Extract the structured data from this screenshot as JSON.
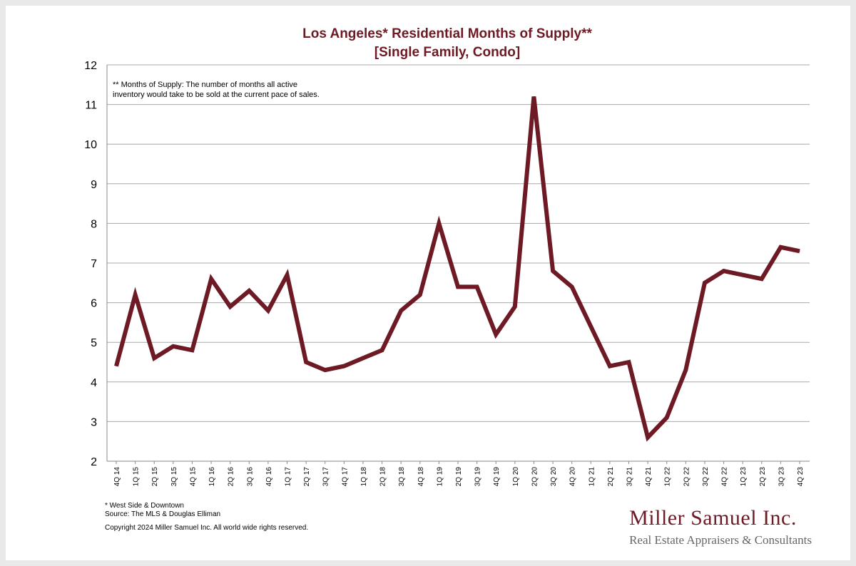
{
  "chart_data": {
    "type": "line",
    "title": "Los Angeles* Residential Months of Supply**",
    "subtitle": "[Single Family, Condo]",
    "xlabel": "",
    "ylabel": "",
    "ylim": [
      2,
      12
    ],
    "yticks": [
      2,
      3,
      4,
      5,
      6,
      7,
      8,
      9,
      10,
      11,
      12
    ],
    "grid": true,
    "line_color": "#6e1a24",
    "categories": [
      "4Q 14",
      "1Q 15",
      "2Q 15",
      "3Q 15",
      "4Q 15",
      "1Q 16",
      "2Q 16",
      "3Q 16",
      "4Q 16",
      "1Q 17",
      "2Q 17",
      "3Q 17",
      "4Q 17",
      "1Q 18",
      "2Q 18",
      "3Q 18",
      "4Q 18",
      "1Q 19",
      "2Q 19",
      "3Q 19",
      "4Q 19",
      "1Q 20",
      "2Q 20",
      "3Q 20",
      "4Q 20",
      "1Q 21",
      "2Q 21",
      "3Q 21",
      "4Q 21",
      "1Q 22",
      "2Q 22",
      "3Q 22",
      "4Q 22",
      "1Q 23",
      "2Q 23",
      "3Q 23",
      "4Q 23"
    ],
    "series": [
      {
        "name": "Months of Supply",
        "values": [
          4.4,
          6.2,
          4.6,
          4.9,
          4.8,
          6.6,
          5.9,
          6.3,
          5.8,
          6.7,
          4.5,
          4.3,
          4.4,
          4.6,
          4.8,
          5.8,
          6.2,
          8.0,
          6.4,
          6.4,
          5.2,
          5.9,
          11.2,
          6.8,
          6.4,
          5.4,
          4.4,
          4.5,
          2.6,
          3.1,
          4.3,
          6.5,
          6.8,
          6.7,
          6.6,
          7.4,
          7.3
        ]
      }
    ],
    "annotations": [
      "** Months of Supply: The number of months all active",
      "inventory would take to be sold at the current pace of sales."
    ]
  },
  "footer": {
    "note": "* West Side & Downtown",
    "source": "Source: The MLS & Douglas Elliman",
    "copyright": "Copyright 2024 Miller Samuel Inc.  All world wide rights reserved."
  },
  "brand": {
    "name": "Miller Samuel Inc.",
    "tagline": "Real Estate Appraisers & Consultants"
  }
}
